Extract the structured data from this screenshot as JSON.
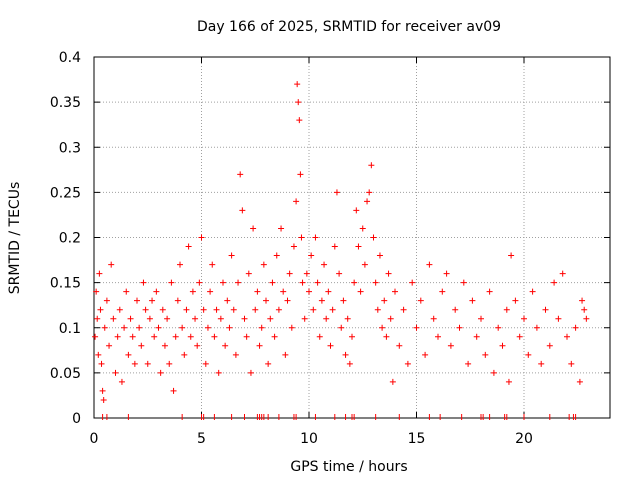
{
  "chart_data": {
    "type": "scatter",
    "title": "Day 166 of 2025, SRMTID for receiver av09",
    "xlabel": "GPS time / hours",
    "ylabel": "SRMTID / TECUs",
    "xlim": [
      0,
      24
    ],
    "ylim": [
      0,
      0.4
    ],
    "x_ticks": [
      0,
      5,
      10,
      15,
      20
    ],
    "x_tick_labels": [
      "0",
      "5",
      "10",
      "15",
      "20"
    ],
    "y_ticks": [
      0,
      0.05,
      0.1,
      0.15,
      0.2,
      0.25,
      0.3,
      0.35,
      0.4
    ],
    "y_tick_labels": [
      "0",
      "0.05",
      "0.1",
      "0.15",
      "0.2",
      "0.25",
      "0.3",
      "0.35",
      "0.4"
    ],
    "grid": true,
    "marker": "+",
    "marker_color": "#ff0000",
    "series": [
      {
        "name": "SRMTID",
        "points": [
          [
            0.05,
            0.09
          ],
          [
            0.1,
            0.14
          ],
          [
            0.15,
            0.11
          ],
          [
            0.2,
            0.07
          ],
          [
            0.25,
            0.16
          ],
          [
            0.3,
            0.12
          ],
          [
            0.35,
            0.06
          ],
          [
            0.4,
            0.03
          ],
          [
            0.45,
            0.02
          ],
          [
            0.5,
            0.1
          ],
          [
            0.6,
            0.13
          ],
          [
            0.7,
            0.08
          ],
          [
            0.8,
            0.17
          ],
          [
            0.9,
            0.11
          ],
          [
            1.0,
            0.05
          ],
          [
            1.1,
            0.09
          ],
          [
            1.2,
            0.12
          ],
          [
            1.3,
            0.04
          ],
          [
            1.4,
            0.1
          ],
          [
            1.5,
            0.14
          ],
          [
            1.6,
            0.07
          ],
          [
            1.7,
            0.11
          ],
          [
            1.8,
            0.09
          ],
          [
            1.9,
            0.06
          ],
          [
            2.0,
            0.13
          ],
          [
            2.1,
            0.1
          ],
          [
            2.2,
            0.08
          ],
          [
            2.3,
            0.15
          ],
          [
            2.4,
            0.12
          ],
          [
            2.5,
            0.06
          ],
          [
            2.6,
            0.11
          ],
          [
            2.7,
            0.13
          ],
          [
            2.8,
            0.09
          ],
          [
            2.9,
            0.14
          ],
          [
            3.0,
            0.1
          ],
          [
            3.1,
            0.05
          ],
          [
            3.2,
            0.12
          ],
          [
            3.3,
            0.08
          ],
          [
            3.4,
            0.11
          ],
          [
            3.5,
            0.06
          ],
          [
            3.6,
            0.15
          ],
          [
            3.7,
            0.03
          ],
          [
            3.8,
            0.09
          ],
          [
            3.9,
            0.13
          ],
          [
            4.0,
            0.17
          ],
          [
            4.1,
            0.1
          ],
          [
            4.2,
            0.07
          ],
          [
            4.3,
            0.12
          ],
          [
            4.4,
            0.19
          ],
          [
            4.5,
            0.09
          ],
          [
            4.6,
            0.14
          ],
          [
            4.7,
            0.11
          ],
          [
            4.8,
            0.08
          ],
          [
            4.9,
            0.15
          ],
          [
            5.0,
            0.2
          ],
          [
            5.1,
            0.12
          ],
          [
            5.2,
            0.06
          ],
          [
            5.3,
            0.1
          ],
          [
            5.4,
            0.14
          ],
          [
            5.5,
            0.17
          ],
          [
            5.6,
            0.09
          ],
          [
            5.7,
            0.12
          ],
          [
            5.8,
            0.05
          ],
          [
            5.9,
            0.11
          ],
          [
            6.0,
            0.15
          ],
          [
            6.1,
            0.08
          ],
          [
            6.2,
            0.13
          ],
          [
            6.3,
            0.1
          ],
          [
            6.4,
            0.18
          ],
          [
            6.5,
            0.12
          ],
          [
            6.6,
            0.07
          ],
          [
            6.7,
            0.15
          ],
          [
            6.8,
            0.27
          ],
          [
            6.9,
            0.23
          ],
          [
            7.0,
            0.11
          ],
          [
            7.1,
            0.09
          ],
          [
            7.2,
            0.16
          ],
          [
            7.3,
            0.05
          ],
          [
            7.4,
            0.21
          ],
          [
            7.5,
            0.12
          ],
          [
            7.6,
            0.14
          ],
          [
            7.7,
            0.08
          ],
          [
            7.8,
            0.1
          ],
          [
            7.9,
            0.17
          ],
          [
            8.0,
            0.13
          ],
          [
            8.1,
            0.06
          ],
          [
            8.2,
            0.11
          ],
          [
            8.3,
            0.15
          ],
          [
            8.4,
            0.09
          ],
          [
            8.5,
            0.18
          ],
          [
            8.6,
            0.12
          ],
          [
            8.7,
            0.21
          ],
          [
            8.8,
            0.14
          ],
          [
            8.9,
            0.07
          ],
          [
            9.0,
            0.13
          ],
          [
            9.1,
            0.16
          ],
          [
            9.2,
            0.1
          ],
          [
            9.3,
            0.19
          ],
          [
            9.4,
            0.24
          ],
          [
            9.45,
            0.37
          ],
          [
            9.5,
            0.35
          ],
          [
            9.55,
            0.33
          ],
          [
            9.6,
            0.27
          ],
          [
            9.65,
            0.2
          ],
          [
            9.7,
            0.15
          ],
          [
            9.8,
            0.11
          ],
          [
            9.9,
            0.16
          ],
          [
            10.0,
            0.14
          ],
          [
            10.1,
            0.18
          ],
          [
            10.2,
            0.12
          ],
          [
            10.3,
            0.2
          ],
          [
            10.4,
            0.15
          ],
          [
            10.5,
            0.09
          ],
          [
            10.6,
            0.13
          ],
          [
            10.7,
            0.17
          ],
          [
            10.8,
            0.11
          ],
          [
            10.9,
            0.14
          ],
          [
            11.0,
            0.08
          ],
          [
            11.1,
            0.12
          ],
          [
            11.2,
            0.19
          ],
          [
            11.3,
            0.25
          ],
          [
            11.4,
            0.16
          ],
          [
            11.5,
            0.1
          ],
          [
            11.6,
            0.13
          ],
          [
            11.7,
            0.07
          ],
          [
            11.8,
            0.11
          ],
          [
            11.9,
            0.06
          ],
          [
            12.0,
            0.09
          ],
          [
            12.1,
            0.15
          ],
          [
            12.2,
            0.23
          ],
          [
            12.3,
            0.19
          ],
          [
            12.4,
            0.14
          ],
          [
            12.5,
            0.21
          ],
          [
            12.6,
            0.17
          ],
          [
            12.7,
            0.24
          ],
          [
            12.8,
            0.25
          ],
          [
            12.9,
            0.28
          ],
          [
            13.0,
            0.2
          ],
          [
            13.1,
            0.15
          ],
          [
            13.2,
            0.12
          ],
          [
            13.3,
            0.18
          ],
          [
            13.4,
            0.1
          ],
          [
            13.5,
            0.13
          ],
          [
            13.6,
            0.09
          ],
          [
            13.7,
            0.16
          ],
          [
            13.8,
            0.11
          ],
          [
            13.9,
            0.04
          ],
          [
            14.0,
            0.14
          ],
          [
            14.2,
            0.08
          ],
          [
            14.4,
            0.12
          ],
          [
            14.6,
            0.06
          ],
          [
            14.8,
            0.15
          ],
          [
            15.0,
            0.1
          ],
          [
            15.2,
            0.13
          ],
          [
            15.4,
            0.07
          ],
          [
            15.6,
            0.17
          ],
          [
            15.8,
            0.11
          ],
          [
            16.0,
            0.09
          ],
          [
            16.2,
            0.14
          ],
          [
            16.4,
            0.16
          ],
          [
            16.6,
            0.08
          ],
          [
            16.8,
            0.12
          ],
          [
            17.0,
            0.1
          ],
          [
            17.2,
            0.15
          ],
          [
            17.4,
            0.06
          ],
          [
            17.6,
            0.13
          ],
          [
            17.8,
            0.09
          ],
          [
            18.0,
            0.11
          ],
          [
            18.2,
            0.07
          ],
          [
            18.4,
            0.14
          ],
          [
            18.6,
            0.05
          ],
          [
            18.8,
            0.1
          ],
          [
            19.0,
            0.08
          ],
          [
            19.2,
            0.12
          ],
          [
            19.3,
            0.04
          ],
          [
            19.4,
            0.18
          ],
          [
            19.6,
            0.13
          ],
          [
            19.8,
            0.09
          ],
          [
            20.0,
            0.11
          ],
          [
            20.2,
            0.07
          ],
          [
            20.4,
            0.14
          ],
          [
            20.6,
            0.1
          ],
          [
            20.8,
            0.06
          ],
          [
            21.0,
            0.12
          ],
          [
            21.2,
            0.08
          ],
          [
            21.4,
            0.15
          ],
          [
            21.6,
            0.11
          ],
          [
            21.8,
            0.16
          ],
          [
            22.0,
            0.09
          ],
          [
            22.2,
            0.06
          ],
          [
            22.4,
            0.1
          ],
          [
            22.6,
            0.04
          ],
          [
            22.7,
            0.13
          ],
          [
            22.8,
            0.12
          ],
          [
            22.9,
            0.11
          ]
        ]
      }
    ],
    "zero_marker_times": [
      0.4,
      0.6,
      1.6,
      4.1,
      5.0,
      5.1,
      5.6,
      6.4,
      7.0,
      7.6,
      7.7,
      7.8,
      7.9,
      8.1,
      8.6,
      9.3,
      9.4,
      10.3,
      11.2,
      11.7,
      12.0,
      12.1,
      13.1,
      14.2,
      15.6,
      16.1,
      17.1,
      18.0,
      18.1,
      18.4,
      19.1,
      19.2,
      20.0,
      21.2,
      22.1,
      22.3,
      22.4
    ]
  }
}
